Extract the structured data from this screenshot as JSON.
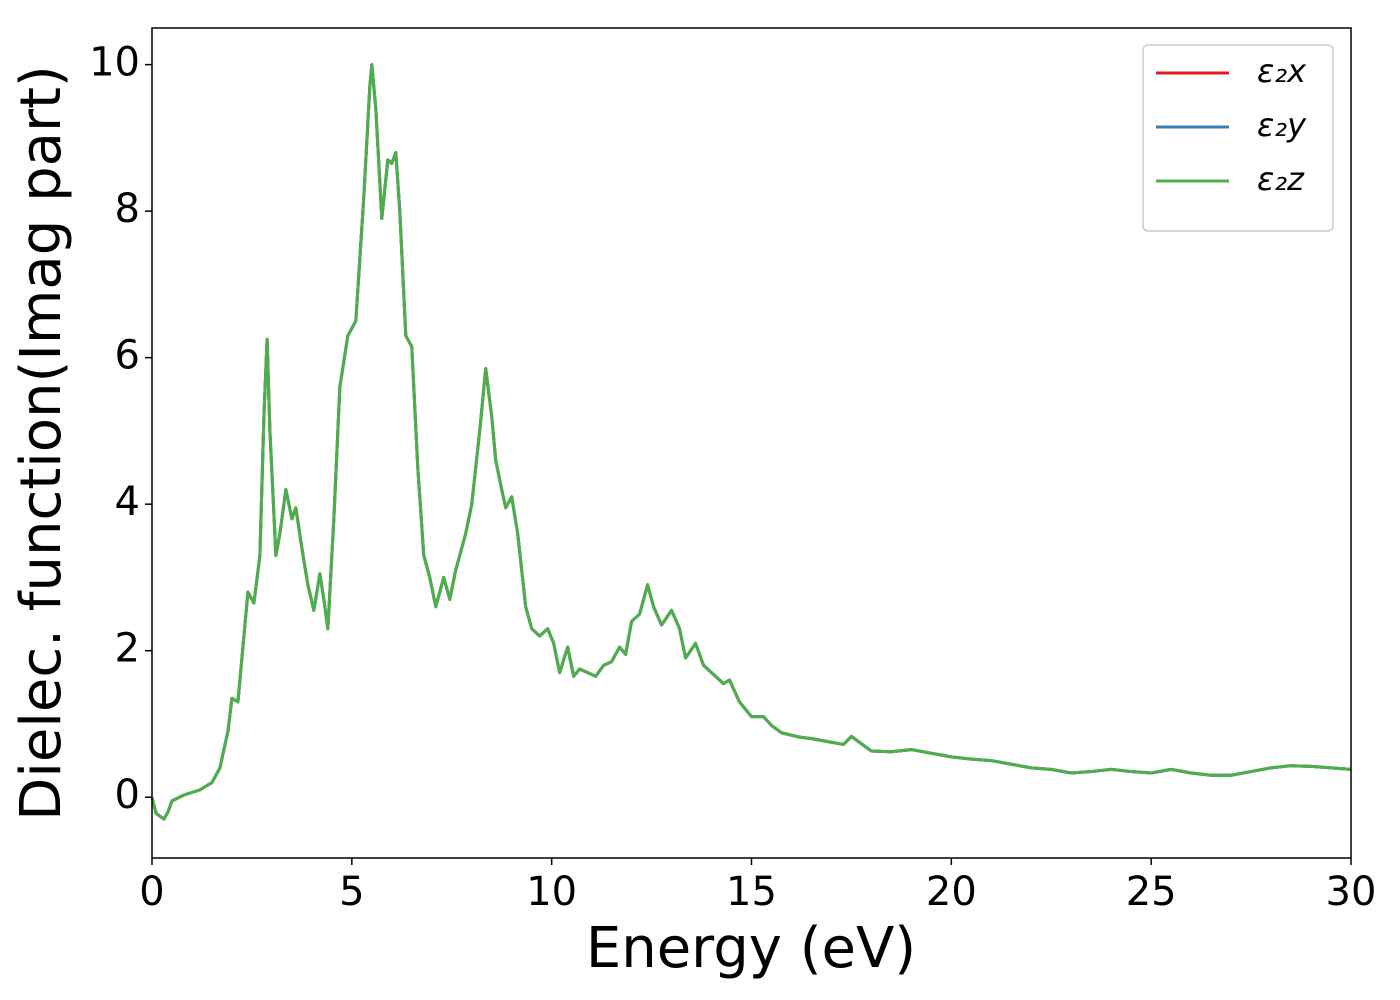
{
  "chart_data": {
    "type": "line",
    "xlabel": "Energy (eV)",
    "ylabel": "Dielec. function(Imag part)",
    "x": [
      0,
      0.1,
      0.3,
      0.4,
      0.5,
      0.8,
      1.2,
      1.5,
      1.7,
      1.9,
      2.0,
      2.15,
      2.3,
      2.4,
      2.55,
      2.7,
      2.8,
      2.88,
      2.95,
      3.1,
      3.2,
      3.35,
      3.5,
      3.6,
      3.75,
      3.9,
      4.05,
      4.2,
      4.3,
      4.4,
      4.55,
      4.7,
      4.9,
      5.1,
      5.3,
      5.45,
      5.5,
      5.6,
      5.75,
      5.9,
      6.0,
      6.1,
      6.2,
      6.35,
      6.5,
      6.65,
      6.8,
      6.95,
      7.1,
      7.3,
      7.45,
      7.6,
      7.85,
      8.0,
      8.2,
      8.35,
      8.5,
      8.6,
      8.75,
      8.85,
      9.0,
      9.15,
      9.35,
      9.5,
      9.7,
      9.9,
      10.05,
      10.2,
      10.4,
      10.55,
      10.7,
      10.9,
      11.1,
      11.3,
      11.5,
      11.7,
      11.85,
      12.0,
      12.2,
      12.4,
      12.55,
      12.75,
      13.0,
      13.2,
      13.35,
      13.6,
      13.8,
      14.0,
      14.3,
      14.45,
      14.7,
      15.0,
      15.3,
      15.5,
      15.75,
      16.2,
      16.5,
      17.0,
      17.3,
      17.5,
      18.0,
      18.5,
      19.0,
      19.5,
      20.0,
      20.5,
      21.0,
      21.5,
      22.0,
      22.5,
      23.0,
      23.5,
      24.0,
      24.5,
      25.0,
      25.5,
      26.0,
      26.5,
      27.0,
      27.5,
      28.0,
      28.5,
      29.0,
      29.5,
      30.0
    ],
    "series": [
      {
        "name": "ε₂x",
        "color": "#e41a1c",
        "values": [
          0,
          -0.22,
          -0.3,
          -0.2,
          -0.05,
          0.03,
          0.1,
          0.2,
          0.4,
          0.9,
          1.35,
          1.3,
          2.2,
          2.8,
          2.65,
          3.3,
          5.2,
          6.25,
          5.0,
          3.3,
          3.6,
          4.2,
          3.8,
          3.95,
          3.4,
          2.9,
          2.55,
          3.05,
          2.7,
          2.3,
          3.8,
          5.6,
          6.3,
          6.5,
          8.2,
          9.7,
          10.0,
          9.4,
          7.9,
          8.7,
          8.65,
          8.8,
          8.0,
          6.3,
          6.15,
          4.5,
          3.3,
          3.0,
          2.6,
          3.0,
          2.7,
          3.1,
          3.6,
          4.0,
          5.0,
          5.85,
          5.2,
          4.6,
          4.2,
          3.95,
          4.1,
          3.6,
          2.6,
          2.3,
          2.2,
          2.3,
          2.1,
          1.7,
          2.05,
          1.65,
          1.75,
          1.7,
          1.65,
          1.8,
          1.85,
          2.05,
          1.95,
          2.4,
          2.5,
          2.9,
          2.6,
          2.35,
          2.55,
          2.3,
          1.9,
          2.1,
          1.8,
          1.7,
          1.55,
          1.6,
          1.3,
          1.1,
          1.1,
          0.98,
          0.88,
          0.82,
          0.8,
          0.75,
          0.72,
          0.83,
          0.63,
          0.62,
          0.65,
          0.6,
          0.55,
          0.52,
          0.5,
          0.45,
          0.4,
          0.38,
          0.33,
          0.35,
          0.38,
          0.35,
          0.33,
          0.38,
          0.33,
          0.3,
          0.3,
          0.35,
          0.4,
          0.43,
          0.42,
          0.4,
          0.38
        ]
      },
      {
        "name": "ε₂y",
        "color": "#377eb8",
        "values": [
          0,
          -0.22,
          -0.3,
          -0.2,
          -0.05,
          0.03,
          0.1,
          0.2,
          0.4,
          0.9,
          1.35,
          1.3,
          2.2,
          2.8,
          2.65,
          3.3,
          5.2,
          6.25,
          5.0,
          3.3,
          3.6,
          4.2,
          3.8,
          3.95,
          3.4,
          2.9,
          2.55,
          3.05,
          2.7,
          2.3,
          3.8,
          5.6,
          6.3,
          6.5,
          8.2,
          9.7,
          10.0,
          9.4,
          7.9,
          8.7,
          8.65,
          8.8,
          8.0,
          6.3,
          6.15,
          4.5,
          3.3,
          3.0,
          2.6,
          3.0,
          2.7,
          3.1,
          3.6,
          4.0,
          5.0,
          5.85,
          5.2,
          4.6,
          4.2,
          3.95,
          4.1,
          3.6,
          2.6,
          2.3,
          2.2,
          2.3,
          2.1,
          1.7,
          2.05,
          1.65,
          1.75,
          1.7,
          1.65,
          1.8,
          1.85,
          2.05,
          1.95,
          2.4,
          2.5,
          2.9,
          2.6,
          2.35,
          2.55,
          2.3,
          1.9,
          2.1,
          1.8,
          1.7,
          1.55,
          1.6,
          1.3,
          1.1,
          1.1,
          0.98,
          0.88,
          0.82,
          0.8,
          0.75,
          0.72,
          0.83,
          0.63,
          0.62,
          0.65,
          0.6,
          0.55,
          0.52,
          0.5,
          0.45,
          0.4,
          0.38,
          0.33,
          0.35,
          0.38,
          0.35,
          0.33,
          0.38,
          0.33,
          0.3,
          0.3,
          0.35,
          0.4,
          0.43,
          0.42,
          0.4,
          0.38
        ]
      },
      {
        "name": "ε₂z",
        "color": "#4daf4a",
        "values": [
          0,
          -0.22,
          -0.3,
          -0.2,
          -0.05,
          0.03,
          0.1,
          0.2,
          0.4,
          0.9,
          1.35,
          1.3,
          2.2,
          2.8,
          2.65,
          3.3,
          5.2,
          6.25,
          5.0,
          3.3,
          3.6,
          4.2,
          3.8,
          3.95,
          3.4,
          2.9,
          2.55,
          3.05,
          2.7,
          2.3,
          3.8,
          5.6,
          6.3,
          6.5,
          8.2,
          9.7,
          10.0,
          9.4,
          7.9,
          8.7,
          8.65,
          8.8,
          8.0,
          6.3,
          6.15,
          4.5,
          3.3,
          3.0,
          2.6,
          3.0,
          2.7,
          3.1,
          3.6,
          4.0,
          5.0,
          5.85,
          5.2,
          4.6,
          4.2,
          3.95,
          4.1,
          3.6,
          2.6,
          2.3,
          2.2,
          2.3,
          2.1,
          1.7,
          2.05,
          1.65,
          1.75,
          1.7,
          1.65,
          1.8,
          1.85,
          2.05,
          1.95,
          2.4,
          2.5,
          2.9,
          2.6,
          2.35,
          2.55,
          2.3,
          1.9,
          2.1,
          1.8,
          1.7,
          1.55,
          1.6,
          1.3,
          1.1,
          1.1,
          0.98,
          0.88,
          0.82,
          0.8,
          0.75,
          0.72,
          0.83,
          0.63,
          0.62,
          0.65,
          0.6,
          0.55,
          0.52,
          0.5,
          0.45,
          0.4,
          0.38,
          0.33,
          0.35,
          0.38,
          0.35,
          0.33,
          0.38,
          0.33,
          0.3,
          0.3,
          0.35,
          0.4,
          0.43,
          0.42,
          0.4,
          0.38
        ]
      }
    ],
    "xlim": [
      0,
      30
    ],
    "xticks": [
      0,
      5,
      10,
      15,
      20,
      25,
      30
    ],
    "ylim": [
      -0.83,
      10.5
    ],
    "yticks": [
      0,
      2,
      4,
      6,
      8,
      10
    ],
    "legend": "upper right"
  }
}
